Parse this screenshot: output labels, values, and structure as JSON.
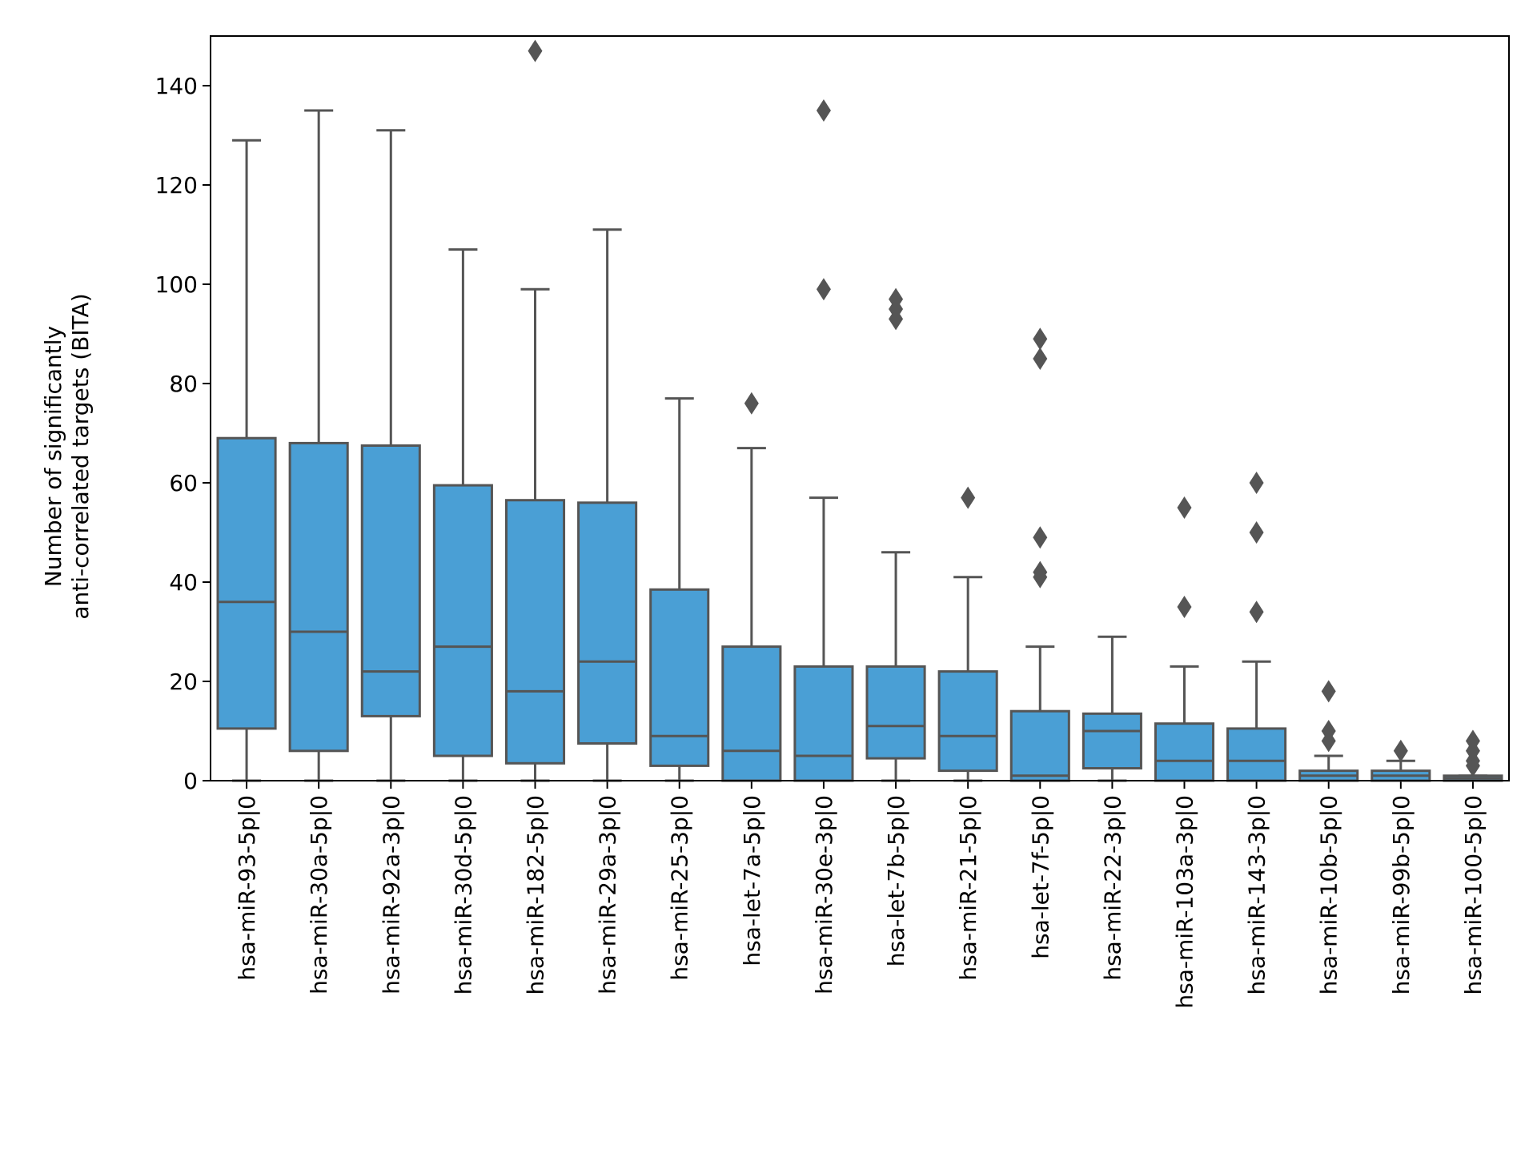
{
  "chart_data": {
    "type": "box",
    "ylabel": [
      "Number of significantly",
      "anti-correlated targets (BITA)"
    ],
    "ylim": [
      0,
      150
    ],
    "yticks": [
      0,
      20,
      40,
      60,
      80,
      100,
      120,
      140
    ],
    "ytick_labels": [
      "0",
      "20",
      "40",
      "60",
      "80",
      "100",
      "120",
      "140"
    ],
    "box_color": "#4a9fd5",
    "line_color": "#555555",
    "grid": false,
    "categories": [
      "hsa-miR-93-5p|0",
      "hsa-miR-30a-5p|0",
      "hsa-miR-92a-3p|0",
      "hsa-miR-30d-5p|0",
      "hsa-miR-182-5p|0",
      "hsa-miR-29a-3p|0",
      "hsa-miR-25-3p|0",
      "hsa-let-7a-5p|0",
      "hsa-miR-30e-3p|0",
      "hsa-let-7b-5p|0",
      "hsa-miR-21-5p|0",
      "hsa-let-7f-5p|0",
      "hsa-miR-22-3p|0",
      "hsa-miR-103a-3p|0",
      "hsa-miR-143-3p|0",
      "hsa-miR-10b-5p|0",
      "hsa-miR-99b-5p|0",
      "hsa-miR-100-5p|0"
    ],
    "boxes": [
      {
        "whislo": 0,
        "q1": 10.5,
        "med": 36,
        "q3": 69,
        "whishi": 129,
        "fliers": []
      },
      {
        "whislo": 0,
        "q1": 6,
        "med": 30,
        "q3": 68,
        "whishi": 135,
        "fliers": []
      },
      {
        "whislo": 0,
        "q1": 13,
        "med": 22,
        "q3": 67.5,
        "whishi": 131,
        "fliers": []
      },
      {
        "whislo": 0,
        "q1": 5,
        "med": 27,
        "q3": 59.5,
        "whishi": 107,
        "fliers": []
      },
      {
        "whislo": 0,
        "q1": 3.5,
        "med": 18,
        "q3": 56.5,
        "whishi": 99,
        "fliers": [
          147
        ]
      },
      {
        "whislo": 0,
        "q1": 7.5,
        "med": 24,
        "q3": 56,
        "whishi": 111,
        "fliers": []
      },
      {
        "whislo": 0,
        "q1": 3,
        "med": 9,
        "q3": 38.5,
        "whishi": 77,
        "fliers": []
      },
      {
        "whislo": 0,
        "q1": 0,
        "med": 6,
        "q3": 27,
        "whishi": 67,
        "fliers": [
          76
        ]
      },
      {
        "whislo": 0,
        "q1": 0,
        "med": 5,
        "q3": 23,
        "whishi": 57,
        "fliers": [
          99,
          135
        ]
      },
      {
        "whislo": 0,
        "q1": 4.5,
        "med": 11,
        "q3": 23,
        "whishi": 46,
        "fliers": [
          93,
          95,
          97
        ]
      },
      {
        "whislo": 0,
        "q1": 2,
        "med": 9,
        "q3": 22,
        "whishi": 41,
        "fliers": [
          57
        ]
      },
      {
        "whislo": 0,
        "q1": 0,
        "med": 1,
        "q3": 14,
        "whishi": 27,
        "fliers": [
          41,
          42,
          49,
          85,
          89
        ]
      },
      {
        "whislo": 0,
        "q1": 2.5,
        "med": 10,
        "q3": 13.5,
        "whishi": 29,
        "fliers": []
      },
      {
        "whislo": 0,
        "q1": 0,
        "med": 4,
        "q3": 11.5,
        "whishi": 23,
        "fliers": [
          35,
          55
        ]
      },
      {
        "whislo": 0,
        "q1": 0,
        "med": 4,
        "q3": 10.5,
        "whishi": 24,
        "fliers": [
          34,
          50,
          60
        ]
      },
      {
        "whislo": 0,
        "q1": 0,
        "med": 1,
        "q3": 2,
        "whishi": 5,
        "fliers": [
          8,
          10,
          18
        ]
      },
      {
        "whislo": 0,
        "q1": 0,
        "med": 1,
        "q3": 2,
        "whishi": 4,
        "fliers": [
          6
        ]
      },
      {
        "whislo": 0,
        "q1": 0,
        "med": 0.5,
        "q3": 1,
        "whishi": 1,
        "fliers": [
          3,
          4,
          6,
          8
        ]
      }
    ]
  }
}
